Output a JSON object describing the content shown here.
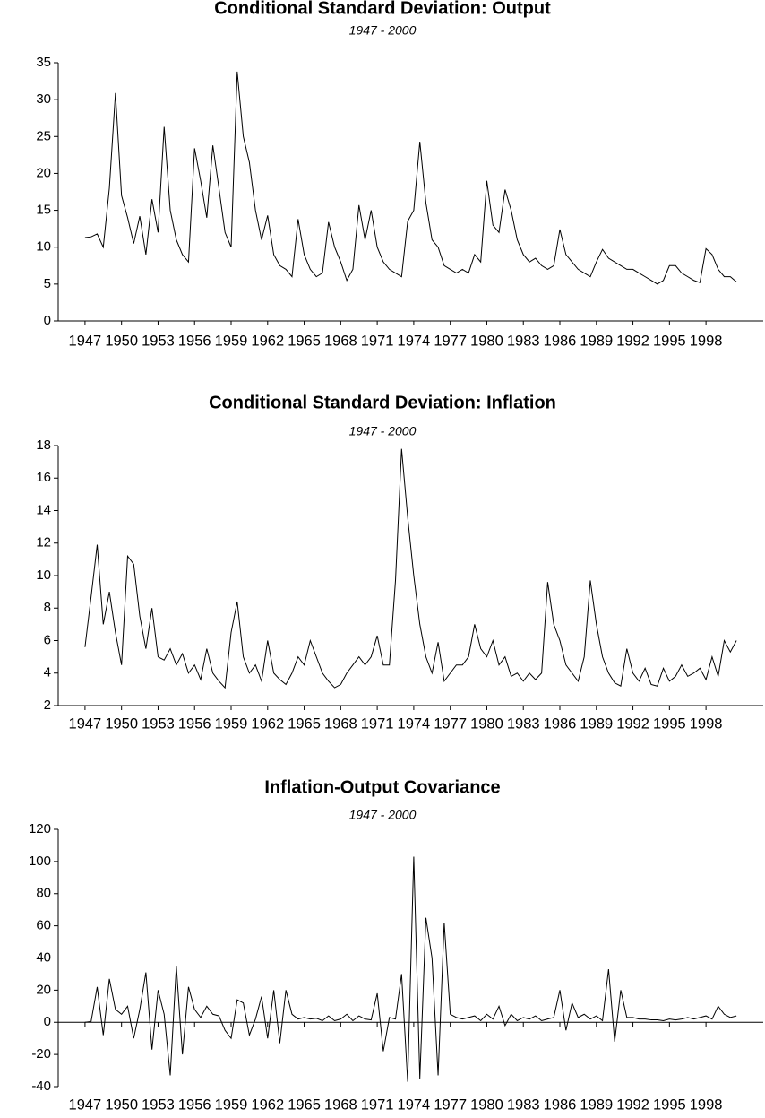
{
  "chart_data": [
    {
      "type": "line",
      "title": "Conditional Standard Deviation: Output",
      "subtitle": "1947 - 2000",
      "color": "#000000",
      "x": [
        1947,
        1947.5,
        1948,
        1948.5,
        1949,
        1949.5,
        1950,
        1950.5,
        1951,
        1951.5,
        1952,
        1952.5,
        1953,
        1953.5,
        1954,
        1954.5,
        1955,
        1955.5,
        1956,
        1956.5,
        1957,
        1957.5,
        1958,
        1958.5,
        1959,
        1959.5,
        1960,
        1960.5,
        1961,
        1961.5,
        1962,
        1962.5,
        1963,
        1963.5,
        1964,
        1964.5,
        1965,
        1965.5,
        1966,
        1966.5,
        1967,
        1967.5,
        1968,
        1968.5,
        1969,
        1969.5,
        1970,
        1970.5,
        1971,
        1971.5,
        1972,
        1972.5,
        1973,
        1973.5,
        1974,
        1974.5,
        1975,
        1975.5,
        1976,
        1976.5,
        1977,
        1977.5,
        1978,
        1978.5,
        1979,
        1979.5,
        1980,
        1980.5,
        1981,
        1981.5,
        1982,
        1982.5,
        1983,
        1983.5,
        1984,
        1984.5,
        1985,
        1985.5,
        1986,
        1986.5,
        1987,
        1987.5,
        1988,
        1988.5,
        1989,
        1989.5,
        1990,
        1990.5,
        1991,
        1991.5,
        1992,
        1992.5,
        1993,
        1993.5,
        1994,
        1994.5,
        1995,
        1995.5,
        1996,
        1996.5,
        1997,
        1997.5,
        1998,
        1998.5,
        1999,
        1999.5,
        2000,
        2000.5
      ],
      "values": [
        11.3,
        11.4,
        11.8,
        10,
        18,
        30.9,
        17,
        14,
        10.5,
        14.2,
        9,
        16.5,
        12,
        26.3,
        15,
        11,
        9,
        8,
        23.4,
        19,
        14,
        23.8,
        18,
        12,
        10,
        33.8,
        25,
        21.5,
        15,
        11,
        14.3,
        9,
        7.5,
        7,
        6,
        13.8,
        9,
        7,
        6,
        6.5,
        13.4,
        10,
        8,
        5.5,
        7,
        15.7,
        11,
        15,
        10,
        8,
        7,
        6.5,
        6,
        13.5,
        15,
        24.3,
        16,
        11,
        10,
        7.5,
        7,
        6.5,
        7,
        6.5,
        9,
        8,
        19,
        13,
        12,
        17.8,
        15,
        11,
        9,
        8,
        8.5,
        7.5,
        7,
        7.5,
        12.4,
        9,
        8,
        7,
        6.5,
        6,
        8,
        9.7,
        8.5,
        8,
        7.5,
        7,
        7,
        6.5,
        6,
        5.5,
        5,
        5.5,
        7.5,
        7.5,
        6.5,
        6,
        5.5,
        5.2,
        9.8,
        9,
        7,
        6,
        6,
        5.3
      ],
      "xlim": [
        1944.8,
        2002.7
      ],
      "xticks": [
        1947,
        1950,
        1953,
        1956,
        1959,
        1962,
        1965,
        1968,
        1971,
        1974,
        1977,
        1980,
        1983,
        1986,
        1989,
        1992,
        1995,
        1998
      ],
      "ylim": [
        0,
        35
      ],
      "yticks": [
        0,
        5,
        10,
        15,
        20,
        25,
        30,
        35
      ]
    },
    {
      "type": "line",
      "title": "Conditional Standard Deviation: Inflation",
      "subtitle": "1947 - 2000",
      "color": "#000000",
      "x": [
        1947,
        1947.5,
        1948,
        1948.5,
        1949,
        1949.5,
        1950,
        1950.5,
        1951,
        1951.5,
        1952,
        1952.5,
        1953,
        1953.5,
        1954,
        1954.5,
        1955,
        1955.5,
        1956,
        1956.5,
        1957,
        1957.5,
        1958,
        1958.5,
        1959,
        1959.5,
        1960,
        1960.5,
        1961,
        1961.5,
        1962,
        1962.5,
        1963,
        1963.5,
        1964,
        1964.5,
        1965,
        1965.5,
        1966,
        1966.5,
        1967,
        1967.5,
        1968,
        1968.5,
        1969,
        1969.5,
        1970,
        1970.5,
        1971,
        1971.5,
        1972,
        1972.5,
        1973,
        1973.5,
        1974,
        1974.5,
        1975,
        1975.5,
        1976,
        1976.5,
        1977,
        1977.5,
        1978,
        1978.5,
        1979,
        1979.5,
        1980,
        1980.5,
        1981,
        1981.5,
        1982,
        1982.5,
        1983,
        1983.5,
        1984,
        1984.5,
        1985,
        1985.5,
        1986,
        1986.5,
        1987,
        1987.5,
        1988,
        1988.5,
        1989,
        1989.5,
        1990,
        1990.5,
        1991,
        1991.5,
        1992,
        1992.5,
        1993,
        1993.5,
        1994,
        1994.5,
        1995,
        1995.5,
        1996,
        1996.5,
        1997,
        1997.5,
        1998,
        1998.5,
        1999,
        1999.5,
        2000,
        2000.5
      ],
      "values": [
        5.6,
        8.7,
        11.9,
        7,
        9,
        6.5,
        4.5,
        11.2,
        10.7,
        7.5,
        5.5,
        8,
        5,
        4.8,
        5.5,
        4.5,
        5.2,
        4,
        4.5,
        3.6,
        5.5,
        4,
        3.5,
        3.1,
        6.5,
        8.4,
        5,
        4,
        4.5,
        3.5,
        6,
        4,
        3.6,
        3.3,
        4,
        5,
        4.5,
        6,
        5,
        4,
        3.5,
        3.1,
        3.3,
        4,
        4.5,
        5,
        4.5,
        5,
        6.3,
        4.5,
        4.5,
        9.7,
        17.8,
        13.6,
        10,
        7,
        5,
        4,
        5.9,
        3.5,
        4,
        4.5,
        4.5,
        5,
        7,
        5.5,
        5,
        6,
        4.5,
        5,
        3.8,
        4,
        3.5,
        4,
        3.6,
        4,
        9.6,
        7,
        6,
        4.5,
        4,
        3.5,
        5,
        9.7,
        7,
        5,
        4,
        3.4,
        3.2,
        5.5,
        4,
        3.5,
        4.3,
        3.3,
        3.2,
        4.3,
        3.5,
        3.8,
        4.5,
        3.8,
        4,
        4.3,
        3.6,
        5,
        3.8,
        6,
        5.3,
        6
      ],
      "xlim": [
        1944.8,
        2002.7
      ],
      "xticks": [
        1947,
        1950,
        1953,
        1956,
        1959,
        1962,
        1965,
        1968,
        1971,
        1974,
        1977,
        1980,
        1983,
        1986,
        1989,
        1992,
        1995,
        1998
      ],
      "ylim": [
        2,
        18
      ],
      "yticks": [
        2,
        4,
        6,
        8,
        10,
        12,
        14,
        16,
        18
      ]
    },
    {
      "type": "line",
      "title": "Inflation-Output Covariance",
      "subtitle": "1947 - 2000",
      "color": "#000000",
      "x": [
        1947,
        1947.5,
        1948,
        1948.5,
        1949,
        1949.5,
        1950,
        1950.5,
        1951,
        1951.5,
        1952,
        1952.5,
        1953,
        1953.5,
        1954,
        1954.5,
        1955,
        1955.5,
        1956,
        1956.5,
        1957,
        1957.5,
        1958,
        1958.5,
        1959,
        1959.5,
        1960,
        1960.5,
        1961,
        1961.5,
        1962,
        1962.5,
        1963,
        1963.5,
        1964,
        1964.5,
        1965,
        1965.5,
        1966,
        1966.5,
        1967,
        1967.5,
        1968,
        1968.5,
        1969,
        1969.5,
        1970,
        1970.5,
        1971,
        1971.5,
        1972,
        1972.5,
        1973,
        1973.5,
        1974,
        1974.5,
        1975,
        1975.5,
        1976,
        1976.5,
        1977,
        1977.5,
        1978,
        1978.5,
        1979,
        1979.5,
        1980,
        1980.5,
        1981,
        1981.5,
        1982,
        1982.5,
        1983,
        1983.5,
        1984,
        1984.5,
        1985,
        1985.5,
        1986,
        1986.5,
        1987,
        1987.5,
        1988,
        1988.5,
        1989,
        1989.5,
        1990,
        1990.5,
        1991,
        1991.5,
        1992,
        1992.5,
        1993,
        1993.5,
        1994,
        1994.5,
        1995,
        1995.5,
        1996,
        1996.5,
        1997,
        1997.5,
        1998,
        1998.5,
        1999,
        1999.5,
        2000,
        2000.5
      ],
      "values": [
        0,
        0.5,
        22,
        -8,
        27,
        8,
        5,
        10,
        -10,
        8,
        31,
        -17,
        20,
        5,
        -33,
        35,
        -20,
        22,
        8,
        3,
        10,
        5,
        4,
        -5,
        -10,
        14,
        12,
        -8,
        2,
        16,
        -10,
        20,
        -13,
        20,
        5,
        2,
        3,
        2,
        2.5,
        1,
        4,
        1,
        2,
        5,
        1,
        4,
        2,
        1.5,
        18,
        -18,
        3,
        2,
        30,
        -37,
        103,
        -35,
        65,
        40,
        -33,
        62,
        5,
        3,
        2,
        3,
        4,
        1,
        5,
        2,
        10,
        -2,
        5,
        1,
        3,
        2,
        4,
        1,
        2,
        3,
        20,
        -5,
        12,
        3,
        5,
        2,
        4,
        1,
        33,
        -12,
        20,
        3,
        3,
        2,
        2,
        1.5,
        1.5,
        1,
        2,
        1.5,
        2,
        3,
        2,
        3,
        4,
        2,
        10,
        5,
        3,
        4
      ],
      "xlim": [
        1944.8,
        2002.7
      ],
      "xticks": [
        1947,
        1950,
        1953,
        1956,
        1959,
        1962,
        1965,
        1968,
        1971,
        1974,
        1977,
        1980,
        1983,
        1986,
        1989,
        1992,
        1995,
        1998
      ],
      "ylim": [
        -40,
        120
      ],
      "yticks": [
        -40,
        -20,
        0,
        20,
        40,
        60,
        80,
        100,
        120
      ]
    }
  ]
}
